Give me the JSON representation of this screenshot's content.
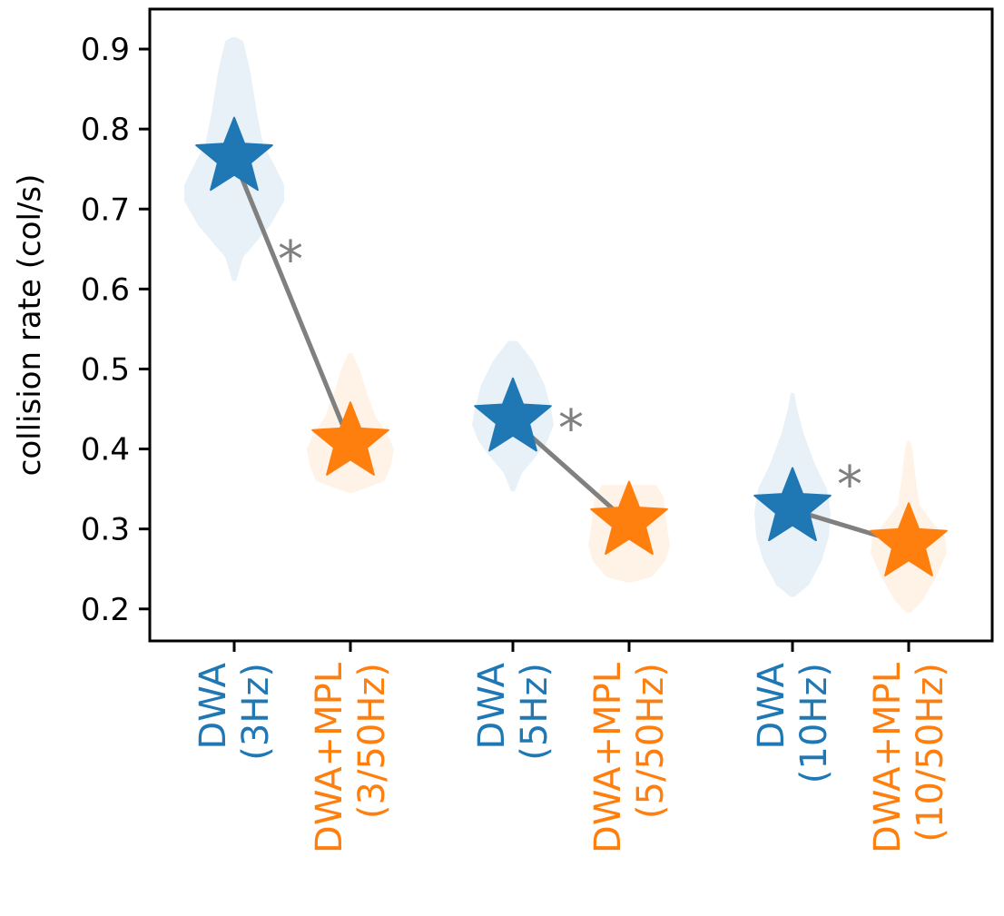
{
  "chart_data": {
    "type": "violin",
    "ylabel": "collision rate (col/s)",
    "ylim": [
      0.16,
      0.95
    ],
    "yticks": [
      0.2,
      0.3,
      0.4,
      0.5,
      0.6,
      0.7,
      0.8,
      0.9
    ],
    "ytick_labels": [
      "0.2",
      "0.3",
      "0.4",
      "0.5",
      "0.6",
      "0.7",
      "0.8",
      "0.9"
    ],
    "colors": {
      "dwa": "#1f77b4",
      "dwa_mpl": "#ff7f0e",
      "line": "#808080"
    },
    "categories": [
      {
        "line1": "DWA",
        "line2": "(3Hz)",
        "method": "dwa",
        "mean": 0.762,
        "violin": [
          [
            0.61,
            0.02
          ],
          [
            0.64,
            0.1
          ],
          [
            0.68,
            0.4
          ],
          [
            0.71,
            0.55
          ],
          [
            0.73,
            0.55
          ],
          [
            0.76,
            0.42
          ],
          [
            0.78,
            0.32
          ],
          [
            0.82,
            0.25
          ],
          [
            0.87,
            0.18
          ],
          [
            0.91,
            0.1
          ],
          [
            0.915,
            0.02
          ]
        ]
      },
      {
        "line1": "DWA+MPL",
        "line2": "(3/50Hz)",
        "method": "dwa_mpl",
        "mean": 0.406,
        "violin": [
          [
            0.345,
            0.02
          ],
          [
            0.36,
            0.38
          ],
          [
            0.38,
            0.45
          ],
          [
            0.4,
            0.48
          ],
          [
            0.42,
            0.4
          ],
          [
            0.44,
            0.28
          ],
          [
            0.47,
            0.18
          ],
          [
            0.5,
            0.1
          ],
          [
            0.52,
            0.02
          ]
        ]
      },
      {
        "line1": "DWA",
        "line2": "(5Hz)",
        "method": "dwa",
        "mean": 0.436,
        "violin": [
          [
            0.347,
            0.02
          ],
          [
            0.37,
            0.1
          ],
          [
            0.39,
            0.25
          ],
          [
            0.41,
            0.38
          ],
          [
            0.43,
            0.45
          ],
          [
            0.45,
            0.42
          ],
          [
            0.48,
            0.35
          ],
          [
            0.51,
            0.22
          ],
          [
            0.535,
            0.05
          ]
        ]
      },
      {
        "line1": "DWA+MPL",
        "line2": "(5/50Hz)",
        "method": "dwa_mpl",
        "mean": 0.307,
        "violin": [
          [
            0.233,
            0.02
          ],
          [
            0.24,
            0.25
          ],
          [
            0.26,
            0.4
          ],
          [
            0.28,
            0.45
          ],
          [
            0.3,
            0.42
          ],
          [
            0.32,
            0.4
          ],
          [
            0.34,
            0.38
          ],
          [
            0.355,
            0.3
          ]
        ]
      },
      {
        "line1": "DWA",
        "line2": "(10Hz)",
        "method": "dwa",
        "mean": 0.324,
        "violin": [
          [
            0.215,
            0.02
          ],
          [
            0.23,
            0.18
          ],
          [
            0.26,
            0.32
          ],
          [
            0.29,
            0.4
          ],
          [
            0.32,
            0.42
          ],
          [
            0.35,
            0.38
          ],
          [
            0.38,
            0.25
          ],
          [
            0.42,
            0.12
          ],
          [
            0.45,
            0.05
          ],
          [
            0.47,
            0.02
          ]
        ]
      },
      {
        "line1": "DWA+MPL",
        "line2": "(10/50Hz)",
        "method": "dwa_mpl",
        "mean": 0.28,
        "violin": [
          [
            0.195,
            0.02
          ],
          [
            0.21,
            0.15
          ],
          [
            0.24,
            0.3
          ],
          [
            0.27,
            0.42
          ],
          [
            0.29,
            0.4
          ],
          [
            0.31,
            0.25
          ],
          [
            0.33,
            0.12
          ],
          [
            0.36,
            0.08
          ],
          [
            0.4,
            0.04
          ],
          [
            0.41,
            0.02
          ]
        ]
      }
    ],
    "pairs": [
      {
        "from": 0,
        "to": 1,
        "mark": "*"
      },
      {
        "from": 2,
        "to": 3,
        "mark": "*"
      },
      {
        "from": 4,
        "to": 5,
        "mark": "*"
      }
    ]
  }
}
